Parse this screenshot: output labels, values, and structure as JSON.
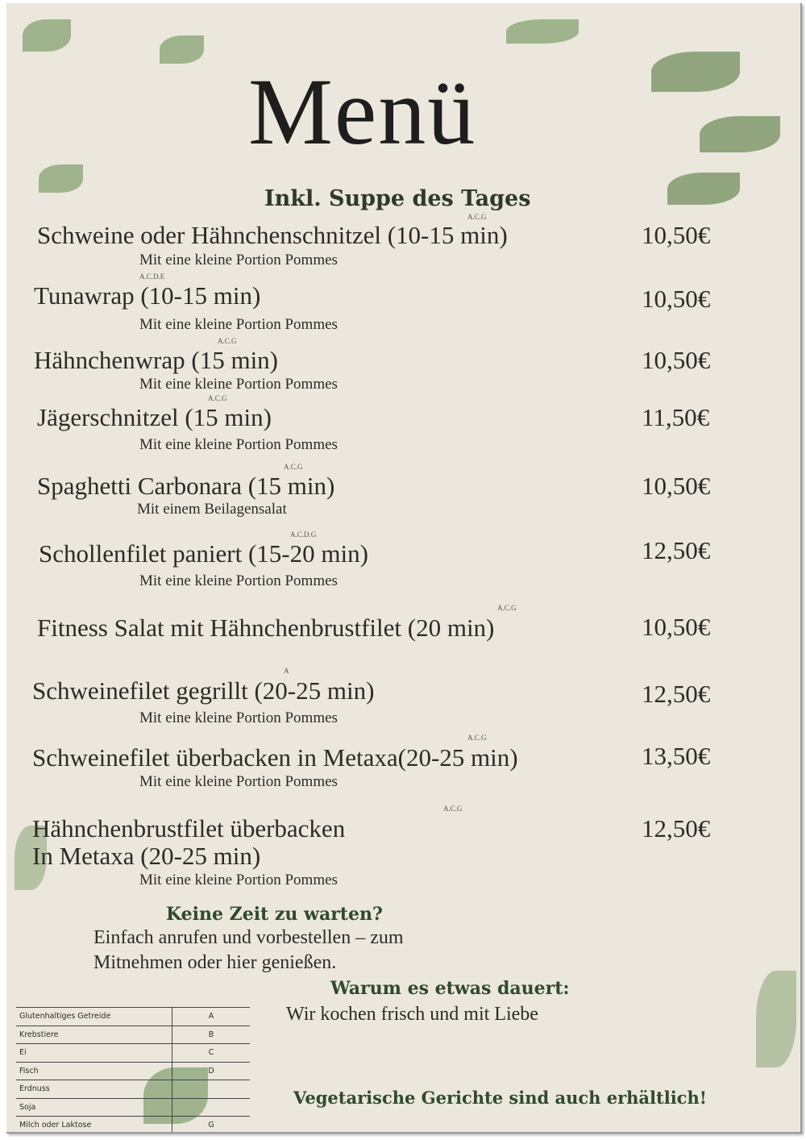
{
  "title": "Menü",
  "subtitle": "Inkl. Suppe des Tages",
  "items": [
    {
      "name": "Schweine oder Hähnchenschnitzel (10-15 min)",
      "allergens": "A.C.G",
      "desc": "Mit eine kleine Portion Pommes",
      "price": "10,50€"
    },
    {
      "name": "Tunawrap (10-15 min)",
      "allergens": "A.C.D.E",
      "desc": "Mit eine kleine Portion Pommes",
      "price": "10,50€"
    },
    {
      "name": "Hähnchenwrap (15 min)",
      "allergens": "A.C.G",
      "desc": "Mit eine kleine Portion Pommes",
      "price": "10,50€"
    },
    {
      "name": "Jägerschnitzel (15 min)",
      "allergens": "A.C.G",
      "desc": "Mit eine kleine Portion Pommes",
      "price": "11,50€"
    },
    {
      "name": "Spaghetti Carbonara (15 min)",
      "allergens": "A.C.G",
      "desc": "Mit einem Beilagensalat",
      "price": "10,50€"
    },
    {
      "name": "Schollenfilet paniert (15-20 min)",
      "allergens": "A.C.D.G",
      "desc": "Mit eine kleine Portion Pommes",
      "price": "12,50€"
    },
    {
      "name": "Fitness Salat mit Hähnchenbrustfilet (20 min)",
      "allergens": "A.C.G",
      "desc": "",
      "price": "10,50€"
    },
    {
      "name": "Schweinefilet gegrillt (20-25 min)",
      "allergens": "A",
      "desc": "Mit eine kleine Portion Pommes",
      "price": "12,50€"
    },
    {
      "name": "Schweinefilet überbacken in Metaxa(20-25 min)",
      "allergens": "A.C.G",
      "desc": "Mit eine kleine Portion Pommes",
      "price": "13,50€"
    },
    {
      "name": "Hähnchenbrustfilet überbacken",
      "name2": "In Metaxa (20-25 min)",
      "allergens": "A.C.G",
      "desc": "Mit eine kleine Portion Pommes",
      "price": "12,50€"
    }
  ],
  "notice1": {
    "heading": "Keine Zeit zu warten?",
    "line1": "Einfach anrufen und vorbestellen – zum",
    "line2": "Mitnehmen oder hier genießen."
  },
  "notice2": {
    "heading": "Warum es etwas dauert:",
    "text": "Wir kochen frisch und mit Liebe"
  },
  "footer": "Vegetarische Gerichte sind auch erhältlich!",
  "allergen_table": [
    {
      "label": "Glutenhaltiges Getreide",
      "code": "A"
    },
    {
      "label": "Krebstiere",
      "code": "B"
    },
    {
      "label": "Ei",
      "code": "C"
    },
    {
      "label": "Fisch",
      "code": "D"
    },
    {
      "label": "Erdnuss",
      "code": ""
    },
    {
      "label": "Soja",
      "code": ""
    },
    {
      "label": "Milch oder Laktose",
      "code": "G"
    }
  ],
  "colors": {
    "paper": "#ebe7dc",
    "leaf": "#7f9e6a",
    "heading_green": "#2f4a2c"
  }
}
